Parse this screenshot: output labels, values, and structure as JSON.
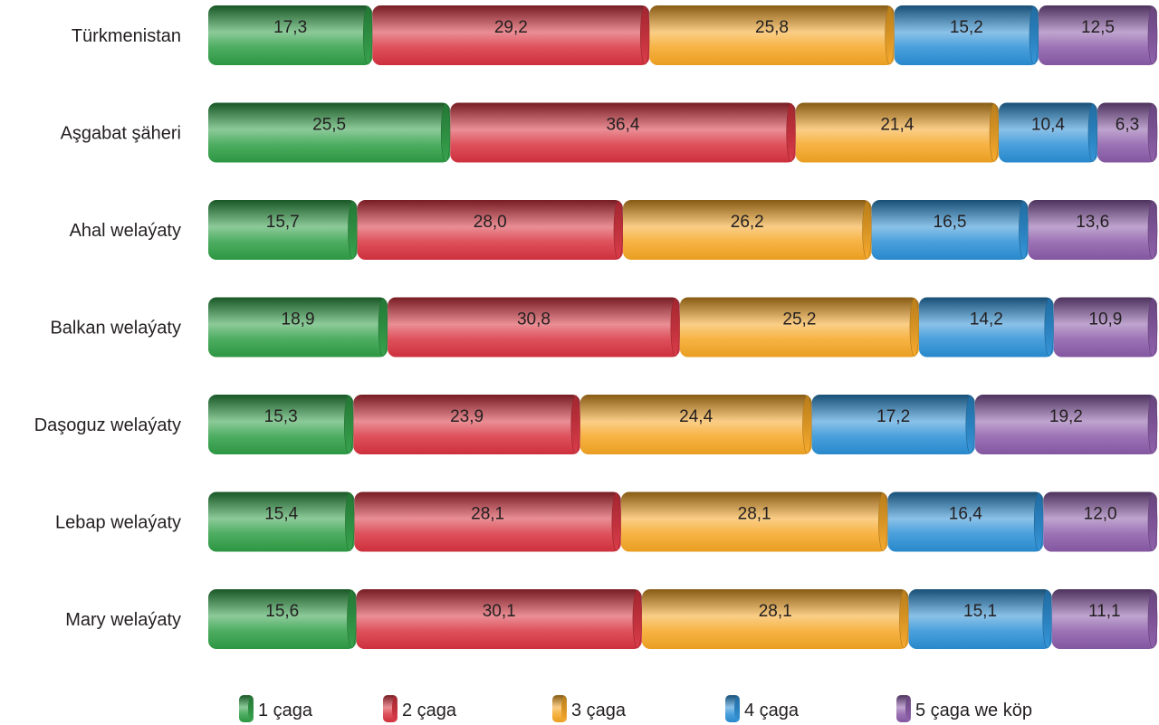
{
  "chart_data": {
    "type": "bar",
    "orientation": "horizontal",
    "stacked": true,
    "categories": [
      "Türkmenistan",
      "Aşgabat şäheri",
      "Ahal welaýaty",
      "Balkan welaýaty",
      "Daşoguz welaýaty",
      "Lebap welaýaty",
      "Mary welaýaty"
    ],
    "series": [
      {
        "name": "1 çaga",
        "color": "#2e9e45",
        "values": [
          17.3,
          25.5,
          15.7,
          18.9,
          15.3,
          15.4,
          15.6
        ],
        "labels": [
          "17,3",
          "25,5",
          "15,7",
          "18,9",
          "15,3",
          "15,4",
          "15,6"
        ]
      },
      {
        "name": "2 çaga",
        "color": "#d8323f",
        "values": [
          29.2,
          36.4,
          28.0,
          30.8,
          23.9,
          28.1,
          30.1
        ],
        "labels": [
          "29,2",
          "36,4",
          "28,0",
          "30,8",
          "23,9",
          "28,1",
          "30,1"
        ]
      },
      {
        "name": "3 çaga",
        "color": "#f5a623",
        "values": [
          25.8,
          21.4,
          26.2,
          25.2,
          24.4,
          28.1,
          28.1
        ],
        "labels": [
          "25,8",
          "21,4",
          "26,2",
          "25,2",
          "24,4",
          "28,1",
          "28,1"
        ]
      },
      {
        "name": "4 çaga",
        "color": "#2a8fd6",
        "values": [
          15.2,
          10.4,
          16.5,
          14.2,
          17.2,
          16.4,
          15.1
        ],
        "labels": [
          "15,2",
          "10,4",
          "16,5",
          "14,2",
          "17,2",
          "16,4",
          "15,1"
        ]
      },
      {
        "name": "5 çaga we köp",
        "color": "#8a5aa8",
        "values": [
          12.5,
          6.3,
          13.6,
          10.9,
          19.2,
          12.0,
          11.1
        ],
        "labels": [
          "12,5",
          "6,3",
          "13,6",
          "10,9",
          "19,2",
          "12,0",
          "11,1"
        ]
      }
    ],
    "xlim": [
      0,
      100
    ],
    "legend": "bottom",
    "grid": false
  }
}
